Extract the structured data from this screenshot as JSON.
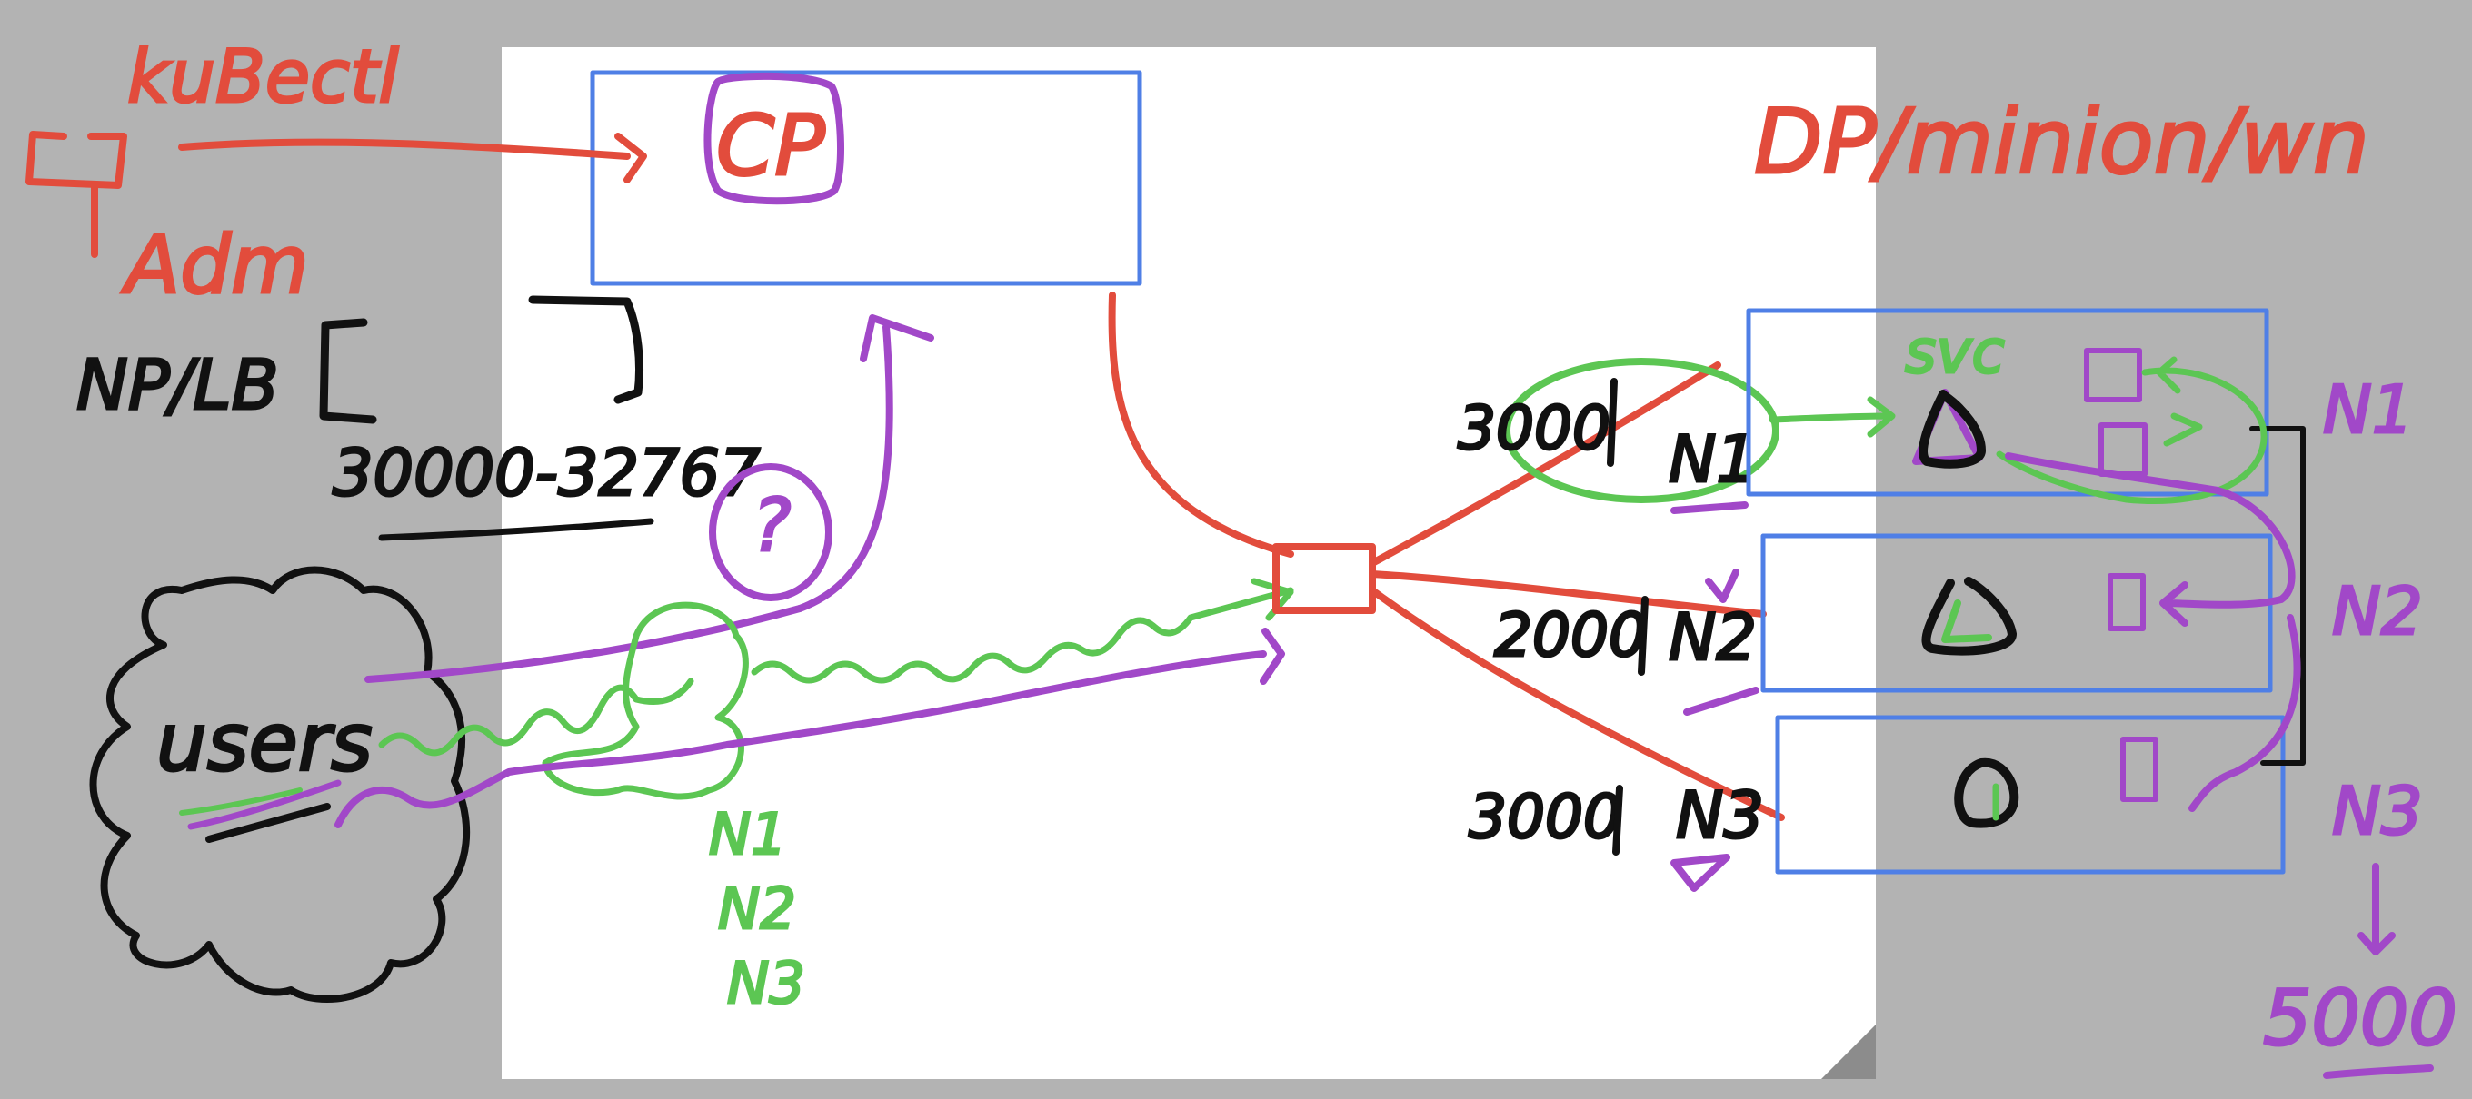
{
  "labels": {
    "kubectl": "kuBectl",
    "adm": "Adm",
    "np_lb": "NP/LB",
    "port_range": "30000-32767",
    "users": "users",
    "cp": "CP",
    "question": "?",
    "nodes_green": [
      "N1",
      "N2",
      "N3"
    ],
    "node_title": "DP/minion/wn",
    "node_ports": [
      {
        "port": "3000",
        "node": "N1"
      },
      {
        "port": "2000",
        "node": "N2"
      },
      {
        "port": "3000",
        "node": "N3"
      }
    ],
    "svc": "svc",
    "right_nodes": [
      "N1",
      "N2",
      "N3"
    ],
    "target_port": "5000"
  },
  "colors": {
    "canvas": "#b3b3b3",
    "whiteboard": "#ffffff",
    "red": "#e24c3c",
    "purple": "#a148c8",
    "green": "#5cc653",
    "blue": "#4f7fe6",
    "black": "#111111"
  }
}
